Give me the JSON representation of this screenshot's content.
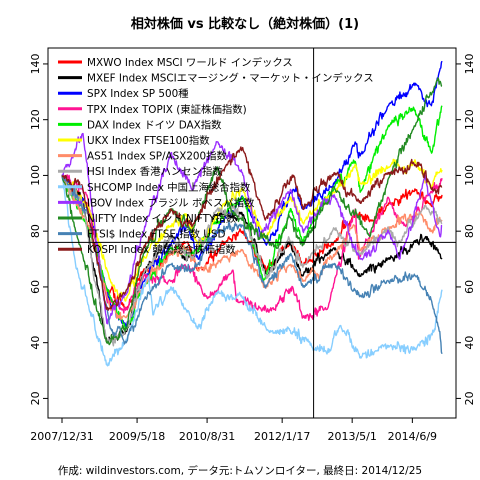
{
  "chart_data": {
    "type": "line",
    "title": "相対株価 vs 比較なし（絶対株価）(1)",
    "caption": "作成: wildinvestors.com, データ元:トムソンロイター, 最終日: 2014/12/25",
    "xlim": [
      "2007-12-31",
      "2014-12-25"
    ],
    "ylim": [
      18,
      145
    ],
    "y_ticks": [
      20,
      40,
      60,
      80,
      100,
      120,
      140
    ],
    "x_ticks": [
      {
        "date": "2007-12-31",
        "label": "2007/12/31"
      },
      {
        "date": "2009-05-18",
        "label": "2009/5/18"
      },
      {
        "date": "2010-08-31",
        "label": "2010/8/31"
      },
      {
        "date": "2012-01-17",
        "label": "2012/1/17"
      },
      {
        "date": "2013-05-01",
        "label": "2013/5/1"
      },
      {
        "date": "2014-06-09",
        "label": "2014/6/9"
      }
    ],
    "crosshair": {
      "date": "2012-08-15",
      "value": 76
    },
    "grid": false,
    "legend_position": "top-left",
    "series": [
      {
        "name": "MXWO Index MSCI ワールド インデックス",
        "color": "#ff0000",
        "points": [
          [
            "2007-12-31",
            100
          ],
          [
            "2008-06-30",
            88
          ],
          [
            "2008-10-15",
            60
          ],
          [
            "2009-03-09",
            52
          ],
          [
            "2009-06-30",
            66
          ],
          [
            "2009-12-31",
            72
          ],
          [
            "2010-04-15",
            76
          ],
          [
            "2010-07-01",
            66
          ],
          [
            "2010-12-31",
            76
          ],
          [
            "2011-04-29",
            80
          ],
          [
            "2011-09-30",
            66
          ],
          [
            "2012-03-15",
            76
          ],
          [
            "2012-06-01",
            68
          ],
          [
            "2012-12-31",
            76
          ],
          [
            "2013-05-20",
            86
          ],
          [
            "2013-08-30",
            84
          ],
          [
            "2013-12-31",
            90
          ],
          [
            "2014-06-30",
            95
          ],
          [
            "2014-10-15",
            89
          ],
          [
            "2014-12-25",
            93
          ]
        ]
      },
      {
        "name": "MXEF Index MSCIエマージング・マーケット・インデックス",
        "color": "#000000",
        "points": [
          [
            "2007-12-31",
            100
          ],
          [
            "2008-05-15",
            92
          ],
          [
            "2008-10-27",
            40
          ],
          [
            "2009-03-09",
            44
          ],
          [
            "2009-06-30",
            65
          ],
          [
            "2009-12-31",
            78
          ],
          [
            "2010-05-25",
            70
          ],
          [
            "2010-11-05",
            86
          ],
          [
            "2011-04-29",
            86
          ],
          [
            "2011-10-04",
            64
          ],
          [
            "2012-03-01",
            76
          ],
          [
            "2012-06-01",
            64
          ],
          [
            "2012-12-31",
            74
          ],
          [
            "2013-06-24",
            64
          ],
          [
            "2013-12-31",
            70
          ],
          [
            "2014-06-30",
            76
          ],
          [
            "2014-09-05",
            78
          ],
          [
            "2014-12-25",
            70
          ]
        ]
      },
      {
        "name": "SPX Index SP 500種",
        "color": "#0000ff",
        "points": [
          [
            "2007-12-31",
            100
          ],
          [
            "2008-06-30",
            87
          ],
          [
            "2008-11-20",
            54
          ],
          [
            "2009-03-09",
            46
          ],
          [
            "2009-06-30",
            62
          ],
          [
            "2009-12-31",
            75
          ],
          [
            "2010-04-23",
            82
          ],
          [
            "2010-07-02",
            70
          ],
          [
            "2010-12-31",
            85
          ],
          [
            "2011-04-29",
            92
          ],
          [
            "2011-10-03",
            75
          ],
          [
            "2012-03-30",
            95
          ],
          [
            "2012-06-01",
            88
          ],
          [
            "2012-12-31",
            97
          ],
          [
            "2013-05-21",
            112
          ],
          [
            "2013-06-24",
            107
          ],
          [
            "2013-12-31",
            125
          ],
          [
            "2014-06-30",
            133
          ],
          [
            "2014-10-15",
            125
          ],
          [
            "2014-12-25",
            141
          ]
        ]
      },
      {
        "name": "TPX Index TOPIX (東証株価指数)",
        "color": "#ff1493",
        "points": [
          [
            "2007-12-31",
            100
          ],
          [
            "2008-06-15",
            93
          ],
          [
            "2008-10-28",
            55
          ],
          [
            "2009-03-10",
            52
          ],
          [
            "2009-06-30",
            64
          ],
          [
            "2009-12-31",
            62
          ],
          [
            "2010-04-05",
            68
          ],
          [
            "2010-08-31",
            56
          ],
          [
            "2011-02-21",
            66
          ],
          [
            "2011-03-15",
            55
          ],
          [
            "2011-11-25",
            52
          ],
          [
            "2012-03-27",
            60
          ],
          [
            "2012-06-04",
            49
          ],
          [
            "2012-11-14",
            52
          ],
          [
            "2013-05-22",
            88
          ],
          [
            "2013-06-13",
            70
          ],
          [
            "2013-12-31",
            92
          ],
          [
            "2014-04-14",
            82
          ],
          [
            "2014-09-30",
            93
          ],
          [
            "2014-12-25",
            99
          ]
        ]
      },
      {
        "name": "DAX Index ドイツ DAX指数",
        "color": "#00ee00",
        "points": [
          [
            "2007-12-31",
            100
          ],
          [
            "2008-06-30",
            80
          ],
          [
            "2008-11-20",
            56
          ],
          [
            "2009-03-06",
            45
          ],
          [
            "2009-06-30",
            60
          ],
          [
            "2009-12-31",
            74
          ],
          [
            "2010-05-25",
            72
          ],
          [
            "2010-12-31",
            86
          ],
          [
            "2011-05-02",
            92
          ],
          [
            "2011-09-12",
            62
          ],
          [
            "2012-03-16",
            88
          ],
          [
            "2012-06-01",
            76
          ],
          [
            "2012-12-31",
            96
          ],
          [
            "2013-05-22",
            105
          ],
          [
            "2013-06-24",
            94
          ],
          [
            "2013-12-31",
            118
          ],
          [
            "2014-06-20",
            124
          ],
          [
            "2014-10-16",
            108
          ],
          [
            "2014-12-25",
            125
          ]
        ]
      },
      {
        "name": "UKX Index FTSE100指数",
        "color": "#ffff00",
        "points": [
          [
            "2007-12-31",
            100
          ],
          [
            "2008-06-30",
            88
          ],
          [
            "2008-11-21",
            62
          ],
          [
            "2009-03-03",
            55
          ],
          [
            "2009-06-30",
            70
          ],
          [
            "2009-12-31",
            82
          ],
          [
            "2010-04-15",
            86
          ],
          [
            "2010-07-01",
            75
          ],
          [
            "2010-12-31",
            90
          ],
          [
            "2011-04-29",
            95
          ],
          [
            "2011-09-22",
            78
          ],
          [
            "2012-03-15",
            92
          ],
          [
            "2012-06-04",
            83
          ],
          [
            "2012-12-31",
            94
          ],
          [
            "2013-05-22",
            104
          ],
          [
            "2013-06-24",
            97
          ],
          [
            "2013-12-31",
            103
          ],
          [
            "2014-06-30",
            105
          ],
          [
            "2014-10-16",
            96
          ],
          [
            "2014-12-25",
            102
          ]
        ]
      },
      {
        "name": "AS51 Index SP/ASX200指数",
        "color": "#ff8c69",
        "points": [
          [
            "2007-12-31",
            100
          ],
          [
            "2008-06-30",
            82
          ],
          [
            "2008-11-20",
            52
          ],
          [
            "2009-03-06",
            49
          ],
          [
            "2009-06-30",
            60
          ],
          [
            "2009-12-31",
            72
          ],
          [
            "2010-04-15",
            74
          ],
          [
            "2010-07-01",
            66
          ],
          [
            "2010-12-31",
            71
          ],
          [
            "2011-04-29",
            73
          ],
          [
            "2011-09-22",
            60
          ],
          [
            "2012-03-15",
            68
          ],
          [
            "2012-06-04",
            62
          ],
          [
            "2012-12-31",
            71
          ],
          [
            "2013-05-14",
            82
          ],
          [
            "2013-06-24",
            73
          ],
          [
            "2013-12-31",
            81
          ],
          [
            "2014-07-31",
            87
          ],
          [
            "2014-10-16",
            80
          ],
          [
            "2014-12-25",
            84
          ]
        ]
      },
      {
        "name": "HSI Index 香港ハンセン指数",
        "color": "#aaaaaa",
        "points": [
          [
            "2007-12-31",
            100
          ],
          [
            "2008-05-15",
            90
          ],
          [
            "2008-10-27",
            40
          ],
          [
            "2009-03-09",
            45
          ],
          [
            "2009-06-30",
            65
          ],
          [
            "2009-12-31",
            78
          ],
          [
            "2010-05-25",
            70
          ],
          [
            "2010-11-08",
            88
          ],
          [
            "2011-04-29",
            85
          ],
          [
            "2011-10-04",
            63
          ],
          [
            "2012-02-29",
            78
          ],
          [
            "2012-06-04",
            67
          ],
          [
            "2012-12-31",
            81
          ],
          [
            "2013-06-24",
            72
          ],
          [
            "2013-12-31",
            81
          ],
          [
            "2014-03-20",
            76
          ],
          [
            "2014-09-03",
            89
          ],
          [
            "2014-12-25",
            83
          ]
        ]
      },
      {
        "name": "SHCOMP Index 中国上海総合指数",
        "color": "#87ceff",
        "points": [
          [
            "2007-12-31",
            100
          ],
          [
            "2008-03-31",
            68
          ],
          [
            "2008-06-30",
            52
          ],
          [
            "2008-10-28",
            32
          ],
          [
            "2009-03-02",
            40
          ],
          [
            "2009-08-04",
            64
          ],
          [
            "2009-09-01",
            50
          ],
          [
            "2009-12-31",
            60
          ],
          [
            "2010-06-30",
            45
          ],
          [
            "2010-11-08",
            58
          ],
          [
            "2011-04-18",
            57
          ],
          [
            "2011-10-21",
            44
          ],
          [
            "2012-02-29",
            45
          ],
          [
            "2012-06-30",
            41
          ],
          [
            "2012-12-03",
            37
          ],
          [
            "2013-02-06",
            46
          ],
          [
            "2013-06-25",
            35
          ],
          [
            "2013-12-31",
            39
          ],
          [
            "2014-06-30",
            38
          ],
          [
            "2014-11-01",
            44
          ],
          [
            "2014-12-25",
            59
          ]
        ]
      },
      {
        "name": "IBOV Index ブラジル ボベスパ指数",
        "color": "#9b30ff",
        "points": [
          [
            "2007-12-31",
            100
          ],
          [
            "2008-05-20",
            115
          ],
          [
            "2008-10-27",
            47
          ],
          [
            "2009-03-02",
            57
          ],
          [
            "2009-06-30",
            80
          ],
          [
            "2009-12-31",
            108
          ],
          [
            "2010-05-25",
            95
          ],
          [
            "2010-11-05",
            112
          ],
          [
            "2011-04-29",
            100
          ],
          [
            "2011-08-08",
            78
          ],
          [
            "2012-03-13",
            95
          ],
          [
            "2012-06-04",
            80
          ],
          [
            "2012-12-31",
            93
          ],
          [
            "2013-06-27",
            70
          ],
          [
            "2013-12-31",
            80
          ],
          [
            "2014-03-14",
            70
          ],
          [
            "2014-09-02",
            100
          ],
          [
            "2014-12-15",
            78
          ],
          [
            "2014-12-25",
            82
          ]
        ]
      },
      {
        "name": "NIFTY Index インド NIFTY指数",
        "color": "#228b22",
        "points": [
          [
            "2007-12-31",
            100
          ],
          [
            "2008-03-31",
            80
          ],
          [
            "2008-10-27",
            40
          ],
          [
            "2009-03-06",
            45
          ],
          [
            "2009-06-30",
            72
          ],
          [
            "2009-12-31",
            88
          ],
          [
            "2010-05-25",
            80
          ],
          [
            "2010-11-05",
            103
          ],
          [
            "2011-02-10",
            87
          ],
          [
            "2011-12-20",
            74
          ],
          [
            "2012-03-01",
            86
          ],
          [
            "2012-06-04",
            75
          ],
          [
            "2012-12-31",
            96
          ],
          [
            "2013-08-28",
            78
          ],
          [
            "2013-12-31",
            99
          ],
          [
            "2014-06-30",
            118
          ],
          [
            "2014-11-28",
            135
          ],
          [
            "2014-12-25",
            132
          ]
        ]
      },
      {
        "name": "FTSI$ Index FTSE 指数 USD",
        "color": "#4682b4",
        "points": [
          [
            "2007-12-31",
            100
          ],
          [
            "2008-06-30",
            85
          ],
          [
            "2008-11-20",
            45
          ],
          [
            "2009-03-06",
            40
          ],
          [
            "2009-06-30",
            55
          ],
          [
            "2009-12-31",
            68
          ],
          [
            "2010-05-25",
            66
          ],
          [
            "2010-11-05",
            80
          ],
          [
            "2011-04-29",
            82
          ],
          [
            "2011-09-22",
            60
          ],
          [
            "2012-03-15",
            72
          ],
          [
            "2012-06-04",
            60
          ],
          [
            "2012-12-31",
            68
          ],
          [
            "2013-06-24",
            57
          ],
          [
            "2013-12-31",
            62
          ],
          [
            "2014-06-30",
            64
          ],
          [
            "2014-10-16",
            55
          ],
          [
            "2014-12-10",
            44
          ],
          [
            "2014-12-25",
            36
          ]
        ]
      },
      {
        "name": "KOSPI Index 韓国総合株価指数",
        "color": "#8b1a1a",
        "points": [
          [
            "2007-12-31",
            100
          ],
          [
            "2008-05-16",
            96
          ],
          [
            "2008-10-24",
            52
          ],
          [
            "2009-03-02",
            58
          ],
          [
            "2009-06-30",
            74
          ],
          [
            "2009-12-31",
            88
          ],
          [
            "2010-05-25",
            82
          ],
          [
            "2010-12-31",
            103
          ],
          [
            "2011-04-27",
            110
          ],
          [
            "2011-09-26",
            84
          ],
          [
            "2012-04-02",
            100
          ],
          [
            "2012-06-04",
            88
          ],
          [
            "2012-12-31",
            101
          ],
          [
            "2013-06-25",
            90
          ],
          [
            "2013-12-31",
            101
          ],
          [
            "2014-07-30",
            104
          ],
          [
            "2014-10-17",
            95
          ],
          [
            "2014-12-25",
            96
          ]
        ]
      }
    ]
  }
}
